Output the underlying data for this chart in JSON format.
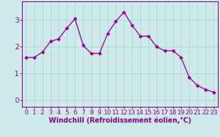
{
  "x": [
    0,
    1,
    2,
    3,
    4,
    5,
    6,
    7,
    8,
    9,
    10,
    11,
    12,
    13,
    14,
    15,
    16,
    17,
    18,
    19,
    20,
    21,
    22,
    23
  ],
  "y": [
    1.6,
    1.6,
    1.8,
    2.2,
    2.3,
    2.7,
    3.05,
    2.05,
    1.75,
    1.75,
    2.5,
    2.95,
    3.3,
    2.8,
    2.4,
    2.4,
    2.0,
    1.85,
    1.85,
    1.6,
    0.85,
    0.55,
    0.4,
    0.3
  ],
  "line_color": "#990099",
  "marker": "D",
  "markersize": 2.5,
  "linewidth": 1.0,
  "xlabel": "Windchill (Refroidissement éolien,°C)",
  "xlim": [
    -0.5,
    23.5
  ],
  "ylim": [
    -0.25,
    3.7
  ],
  "yticks": [
    0,
    1,
    2,
    3
  ],
  "xticks": [
    0,
    1,
    2,
    3,
    4,
    5,
    6,
    7,
    8,
    9,
    10,
    11,
    12,
    13,
    14,
    15,
    16,
    17,
    18,
    19,
    20,
    21,
    22,
    23
  ],
  "bg_color": "#ceeaea",
  "grid_color": "#aad4d4",
  "tick_color": "#880088",
  "label_color": "#880088",
  "tick_fontsize": 6.5,
  "xlabel_fontsize": 7.0,
  "spine_color": "#880088"
}
